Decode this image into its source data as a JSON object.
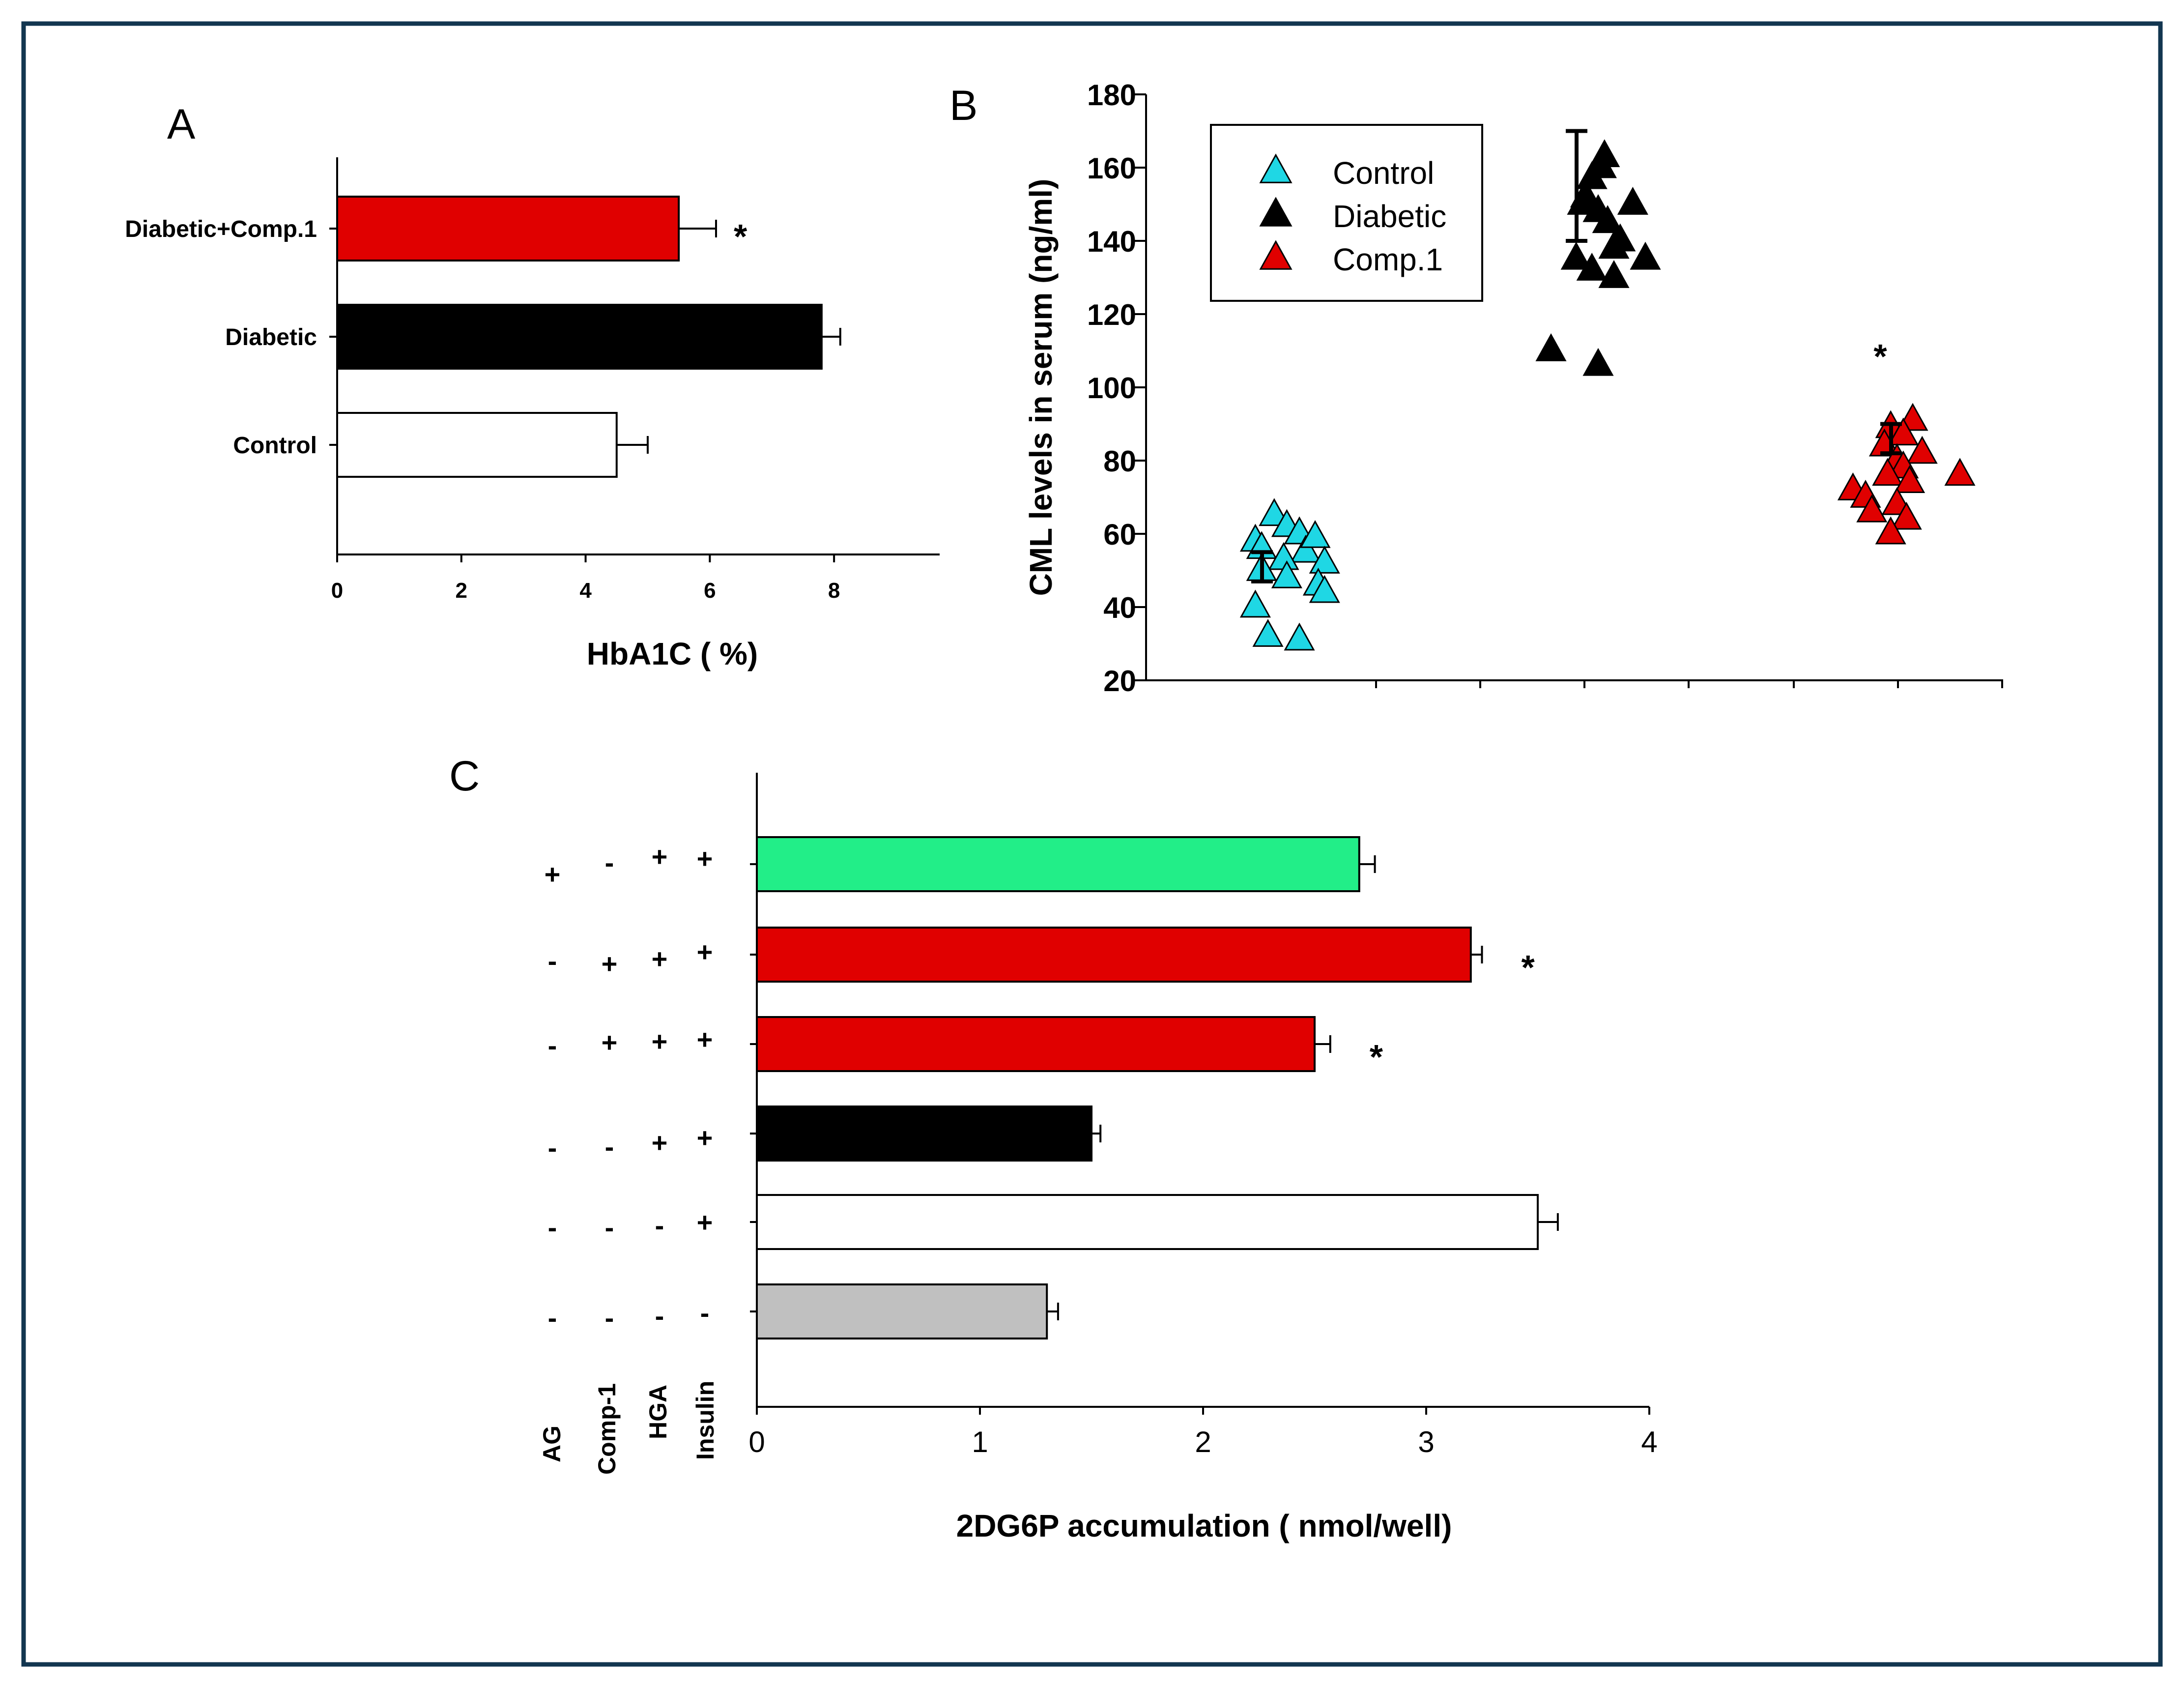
{
  "chart_data": [
    {
      "panel": "A",
      "type": "bar",
      "orientation": "horizontal",
      "panel_label": "A",
      "categories": [
        "Diabetic+Comp.1",
        "Diabetic",
        "Control"
      ],
      "values": [
        5.5,
        7.8,
        4.5
      ],
      "errors": [
        0.6,
        0.3,
        0.5
      ],
      "colors": [
        "#e00000",
        "#000000",
        "#ffffff"
      ],
      "significance": [
        "*",
        "",
        ""
      ],
      "xlabel": "HbA1C ( %)",
      "xlim": [
        0,
        9.7
      ],
      "xticks": [
        0,
        2,
        4,
        6,
        8
      ],
      "xtick_labels": [
        "0",
        "2",
        "4",
        "6",
        "8"
      ]
    },
    {
      "panel": "B",
      "type": "scatter",
      "panel_label": "B",
      "ylabel": "CML levels in serum (ng/ml)",
      "ylim": [
        20,
        180
      ],
      "yticks": [
        20,
        40,
        60,
        80,
        100,
        120,
        140,
        160,
        180
      ],
      "ytick_labels": [
        "20",
        "40",
        "60",
        "80",
        "100",
        "120",
        "140",
        "160",
        "180"
      ],
      "legend": [
        "Control",
        "Diabetic",
        "Comp.1"
      ],
      "legend_position": "top-left",
      "significance_label": "*",
      "series": [
        {
          "name": "Control",
          "color": "#1fd7e4",
          "group": 1,
          "mean": 47,
          "error": 8,
          "x": [
            1.02,
            1.06,
            1.1,
            0.96,
            0.98,
            1.12,
            1.15,
            1.05,
            0.98,
            1.06,
            1.18,
            1.16,
            1.18,
            0.96,
            1.0,
            1.1
          ],
          "y": [
            65,
            62,
            60,
            58,
            56,
            55,
            59,
            53,
            50,
            48,
            52,
            46,
            44,
            40,
            32,
            31
          ]
        },
        {
          "name": "Diabetic",
          "color": "#000000",
          "group": 2,
          "mean": 140,
          "error": 30,
          "x": [
            2.07,
            2.06,
            2.03,
            2.01,
            2.0,
            2.05,
            2.08,
            2.12,
            2.16,
            2.1,
            1.98,
            2.03,
            2.1,
            2.2,
            1.9,
            2.05
          ],
          "y": [
            163,
            160,
            157,
            152,
            150,
            148,
            145,
            140,
            150,
            138,
            135,
            132,
            130,
            135,
            110,
            106
          ]
        },
        {
          "name": "Comp.1",
          "color": "#e00000",
          "group": 3,
          "mean": 82,
          "error": 8,
          "x": [
            3.05,
            2.98,
            3.02,
            2.96,
            3.08,
            3.0,
            3.02,
            2.97,
            3.04,
            3.2,
            2.86,
            2.9,
            3.0,
            2.92,
            3.03,
            2.98
          ],
          "y": [
            91,
            89,
            87,
            84,
            82,
            80,
            78,
            76,
            74,
            76,
            72,
            70,
            68,
            66,
            64,
            60
          ]
        }
      ]
    },
    {
      "panel": "C",
      "type": "bar",
      "orientation": "horizontal",
      "panel_label": "C",
      "values": [
        2.7,
        3.2,
        2.5,
        1.5,
        3.5,
        1.3
      ],
      "errors": [
        0.07,
        0.05,
        0.07,
        0.04,
        0.09,
        0.05
      ],
      "colors": [
        "#22ee88",
        "#e00000",
        "#e00000",
        "#000000",
        "#ffffff",
        "#c0c0c0"
      ],
      "significance": [
        "",
        "*",
        "*",
        "",
        "",
        ""
      ],
      "treatments": [
        "AG",
        "Comp-1",
        "HGA",
        "Insulin"
      ],
      "treatment_matrix": [
        [
          "+",
          "-",
          "+",
          "+"
        ],
        [
          "-",
          "+",
          "+",
          "+"
        ],
        [
          "-",
          "+",
          "+",
          "+"
        ],
        [
          "-",
          "-",
          "+",
          "+"
        ],
        [
          "-",
          "-",
          "-",
          "+"
        ],
        [
          "-",
          "-",
          "-",
          "-"
        ]
      ],
      "xlabel": "2DG6P accumulation ( nmol/well)",
      "xlim": [
        0,
        4
      ],
      "xticks": [
        0,
        1,
        2,
        3,
        4
      ],
      "xtick_labels": [
        "0",
        "1",
        "2",
        "3",
        "4"
      ]
    }
  ]
}
